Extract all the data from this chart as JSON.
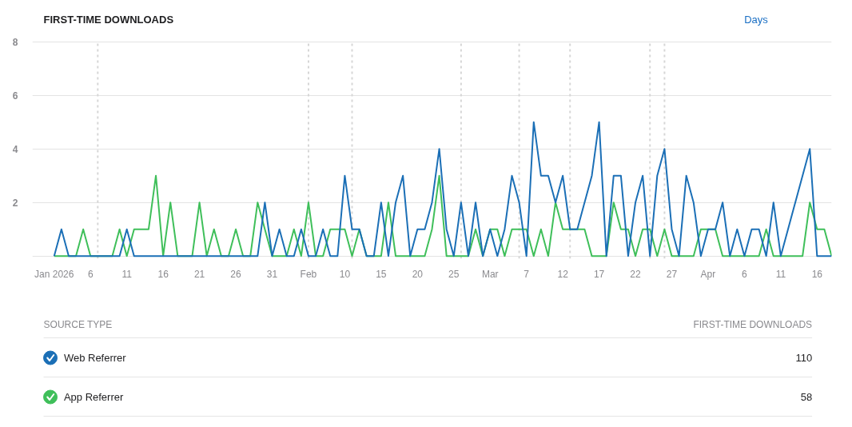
{
  "chart_data": {
    "type": "line",
    "title": "FIRST-TIME DOWNLOADS",
    "legend_title": "SOURCE TYPE",
    "annotations": [
      "Days",
      "FIRST-TIME DOWNLOADS",
      "110",
      "58"
    ],
    "x": [
      "2026-01-01",
      "2026-01-02",
      "2026-01-03",
      "2026-01-04",
      "2026-01-05",
      "2026-01-06",
      "2026-01-07",
      "2026-01-08",
      "2026-01-09",
      "2026-01-10",
      "2026-01-11",
      "2026-01-12",
      "2026-01-13",
      "2026-01-14",
      "2026-01-15",
      "2026-01-16",
      "2026-01-17",
      "2026-01-18",
      "2026-01-19",
      "2026-01-20",
      "2026-01-21",
      "2026-01-22",
      "2026-01-23",
      "2026-01-24",
      "2026-01-25",
      "2026-01-26",
      "2026-01-27",
      "2026-01-28",
      "2026-01-29",
      "2026-01-30",
      "2026-01-31",
      "2026-02-01",
      "2026-02-02",
      "2026-02-03",
      "2026-02-04",
      "2026-02-05",
      "2026-02-06",
      "2026-02-07",
      "2026-02-08",
      "2026-02-09",
      "2026-02-10",
      "2026-02-11",
      "2026-02-12",
      "2026-02-13",
      "2026-02-14",
      "2026-02-15",
      "2026-02-16",
      "2026-02-17",
      "2026-02-18",
      "2026-02-19",
      "2026-02-20",
      "2026-02-21",
      "2026-02-22",
      "2026-02-23",
      "2026-02-24",
      "2026-02-25",
      "2026-02-26",
      "2026-02-27",
      "2026-02-28",
      "2026-03-01",
      "2026-03-02",
      "2026-03-03",
      "2026-03-04",
      "2026-03-05",
      "2026-03-06",
      "2026-03-07",
      "2026-03-08",
      "2026-03-09",
      "2026-03-10",
      "2026-03-11",
      "2026-03-12",
      "2026-03-13",
      "2026-03-14",
      "2026-03-15",
      "2026-03-16",
      "2026-03-17",
      "2026-03-18",
      "2026-03-19",
      "2026-03-20",
      "2026-03-21",
      "2026-03-22",
      "2026-03-23",
      "2026-03-24",
      "2026-03-25",
      "2026-03-26",
      "2026-03-27",
      "2026-03-28",
      "2026-03-29",
      "2026-03-30",
      "2026-03-31",
      "2026-04-01",
      "2026-04-02",
      "2026-04-03",
      "2026-04-04",
      "2026-04-05",
      "2026-04-06",
      "2026-04-07",
      "2026-04-08",
      "2026-04-09",
      "2026-04-10",
      "2026-04-11",
      "2026-04-12",
      "2026-04-13",
      "2026-04-14",
      "2026-04-15",
      "2026-04-16",
      "2026-04-17",
      "2026-04-18"
    ],
    "series": [
      {
        "name": "Web Referrer",
        "color": "#1b6fb6",
        "values": [
          0,
          1,
          0,
          0,
          0,
          0,
          0,
          0,
          0,
          0,
          1,
          0,
          0,
          0,
          0,
          0,
          0,
          0,
          0,
          0,
          0,
          0,
          0,
          0,
          0,
          0,
          0,
          0,
          0,
          2,
          0,
          1,
          0,
          0,
          1,
          0,
          0,
          1,
          0,
          0,
          3,
          1,
          1,
          0,
          0,
          2,
          0,
          2,
          3,
          0,
          1,
          1,
          2,
          4,
          1,
          0,
          2,
          0,
          2,
          0,
          1,
          0,
          1,
          3,
          2,
          0,
          5,
          3,
          3,
          2,
          3,
          1,
          1,
          2,
          3,
          5,
          0,
          3,
          3,
          0,
          2,
          3,
          0,
          3,
          4,
          1,
          0,
          3,
          2,
          0,
          1,
          1,
          2,
          0,
          1,
          0,
          1,
          1,
          0,
          2,
          0,
          1,
          2,
          3,
          4,
          0,
          0,
          0
        ]
      },
      {
        "name": "App Referrer",
        "color": "#3fbf5a",
        "values": [
          0,
          0,
          0,
          0,
          1,
          0,
          0,
          0,
          0,
          1,
          0,
          1,
          1,
          1,
          3,
          0,
          2,
          0,
          0,
          0,
          2,
          0,
          1,
          0,
          0,
          1,
          0,
          0,
          2,
          1,
          0,
          0,
          0,
          1,
          0,
          2,
          0,
          0,
          1,
          1,
          1,
          0,
          1,
          0,
          0,
          0,
          2,
          0,
          0,
          0,
          0,
          0,
          1,
          3,
          0,
          0,
          0,
          0,
          1,
          0,
          1,
          1,
          0,
          1,
          1,
          1,
          0,
          1,
          0,
          2,
          1,
          1,
          1,
          1,
          0,
          0,
          0,
          2,
          1,
          1,
          0,
          1,
          1,
          0,
          1,
          0,
          0,
          0,
          0,
          1,
          1,
          1,
          0,
          0,
          0,
          0,
          0,
          0,
          1,
          0,
          0,
          0,
          0,
          0,
          2,
          1,
          1,
          0
        ]
      }
    ],
    "xlim": [
      "2025-12-29",
      "2026-04-18"
    ],
    "xticks": [
      {
        "value": "2026-01-01",
        "label": "Jan 2026"
      },
      {
        "value": "2026-01-06",
        "label": "6"
      },
      {
        "value": "2026-01-11",
        "label": "11"
      },
      {
        "value": "2026-01-16",
        "label": "16"
      },
      {
        "value": "2026-01-21",
        "label": "21"
      },
      {
        "value": "2026-01-26",
        "label": "26"
      },
      {
        "value": "2026-01-31",
        "label": "31"
      },
      {
        "value": "2026-02-05",
        "label": "Feb"
      },
      {
        "value": "2026-02-10",
        "label": "10"
      },
      {
        "value": "2026-02-15",
        "label": "15"
      },
      {
        "value": "2026-02-20",
        "label": "20"
      },
      {
        "value": "2026-02-25",
        "label": "25"
      },
      {
        "value": "2026-03-02",
        "label": "Mar"
      },
      {
        "value": "2026-03-07",
        "label": "7"
      },
      {
        "value": "2026-03-12",
        "label": "12"
      },
      {
        "value": "2026-03-17",
        "label": "17"
      },
      {
        "value": "2026-03-22",
        "label": "22"
      },
      {
        "value": "2026-03-27",
        "label": "27"
      },
      {
        "value": "2026-04-01",
        "label": "Apr"
      },
      {
        "value": "2026-04-06",
        "label": "6"
      },
      {
        "value": "2026-04-11",
        "label": "11"
      },
      {
        "value": "2026-04-16",
        "label": "16"
      }
    ],
    "ylim": [
      -0.1,
      8.05
    ],
    "yticks": [
      {
        "value": 0,
        "label": null
      },
      2,
      4,
      6,
      8
    ],
    "ref_lines": [
      {
        "axis": "x",
        "value": "2026-01-07",
        "color": "#d6d6d6",
        "line_style": "dotted"
      },
      {
        "axis": "x",
        "value": "2026-02-05",
        "color": "#d6d6d6",
        "line_style": "dotted"
      },
      {
        "axis": "x",
        "value": "2026-02-11",
        "color": "#d6d6d6",
        "line_style": "dotted"
      },
      {
        "axis": "x",
        "value": "2026-02-26",
        "color": "#d6d6d6",
        "line_style": "dotted"
      },
      {
        "axis": "x",
        "value": "2026-03-06",
        "color": "#d6d6d6",
        "line_style": "dotted"
      },
      {
        "axis": "x",
        "value": "2026-03-13",
        "color": "#d6d6d6",
        "line_style": "dotted"
      },
      {
        "axis": "x",
        "value": "2026-03-24",
        "color": "#d6d6d6",
        "line_style": "dotted"
      },
      {
        "axis": "x",
        "value": "2026-03-26",
        "color": "#d6d6d6",
        "line_style": "dotted"
      }
    ],
    "grid": "y",
    "legend": "bottom"
  }
}
